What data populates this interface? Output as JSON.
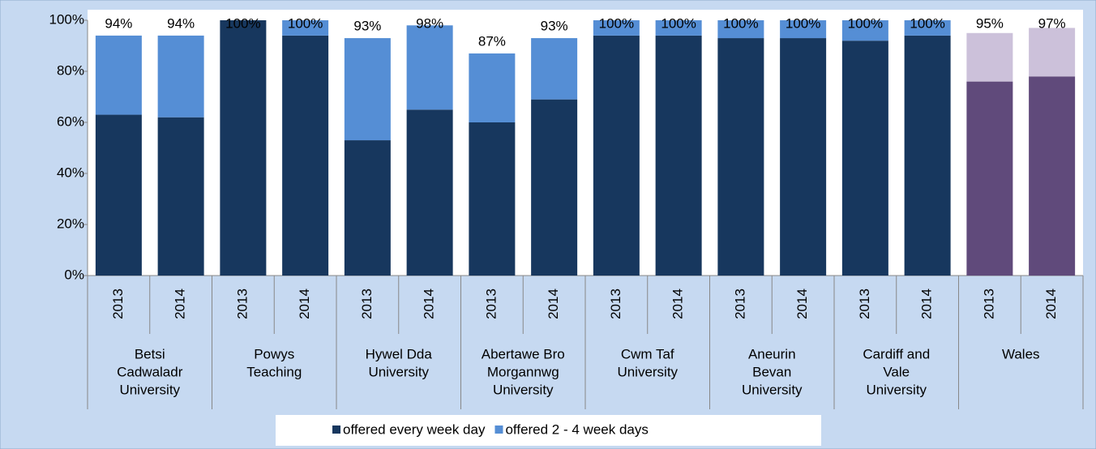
{
  "chart_data": {
    "type": "stacked_bar",
    "categories": [
      "2013",
      "2014",
      "2013",
      "2014",
      "2013",
      "2014",
      "2013",
      "2014",
      "2013",
      "2014",
      "2013",
      "2014",
      "2013",
      "2014",
      "2013",
      "2014"
    ],
    "groups": [
      {
        "label": [
          "Betsi",
          "Cadwaladr",
          "University"
        ],
        "span": 2
      },
      {
        "label": [
          "Powys",
          "Teaching"
        ],
        "span": 2
      },
      {
        "label": [
          "Hywel Dda",
          "University"
        ],
        "span": 2
      },
      {
        "label": [
          "Abertawe Bro",
          "Morgannwg",
          "University"
        ],
        "span": 2
      },
      {
        "label": [
          "Cwm Taf",
          "University"
        ],
        "span": 2
      },
      {
        "label": [
          "Aneurin",
          "Bevan",
          "University"
        ],
        "span": 2
      },
      {
        "label": [
          "Cardiff and",
          "Vale",
          "University"
        ],
        "span": 2
      },
      {
        "label": [
          "Wales"
        ],
        "span": 2
      }
    ],
    "series": [
      {
        "name": "offered every week day",
        "color": "#17375e",
        "point_colors": [
          "#17375e",
          "#17375e",
          "#17375e",
          "#17375e",
          "#17375e",
          "#17375e",
          "#17375e",
          "#17375e",
          "#17375e",
          "#17375e",
          "#17375e",
          "#17375e",
          "#17375e",
          "#17375e",
          "#604a7b",
          "#604a7b"
        ],
        "values": [
          63,
          62,
          100,
          94,
          53,
          65,
          60,
          69,
          94,
          94,
          93,
          93,
          92,
          94,
          76,
          78
        ]
      },
      {
        "name": "offered 2 - 4 week days",
        "color": "#558ed5",
        "point_colors": [
          "#558ed5",
          "#558ed5",
          "#558ed5",
          "#558ed5",
          "#558ed5",
          "#558ed5",
          "#558ed5",
          "#558ed5",
          "#558ed5",
          "#558ed5",
          "#558ed5",
          "#558ed5",
          "#558ed5",
          "#558ed5",
          "#ccc1da",
          "#ccc1da"
        ],
        "values": [
          31,
          32,
          0,
          6,
          40,
          33,
          27,
          24,
          6,
          6,
          7,
          7,
          8,
          6,
          19,
          19
        ]
      }
    ],
    "total_labels": [
      "94%",
      "94%",
      "100%",
      "100%",
      "93%",
      "98%",
      "87%",
      "93%",
      "100%",
      "100%",
      "100%",
      "100%",
      "100%",
      "100%",
      "95%",
      "97%"
    ],
    "ylim": [
      0,
      100
    ],
    "yticks": [
      {
        "value": 0,
        "label": "0%"
      },
      {
        "value": 20,
        "label": "20%"
      },
      {
        "value": 40,
        "label": "40%"
      },
      {
        "value": 60,
        "label": "60%"
      },
      {
        "value": 80,
        "label": "80%"
      },
      {
        "value": 100,
        "label": "100%"
      }
    ],
    "legend": "bottom"
  }
}
